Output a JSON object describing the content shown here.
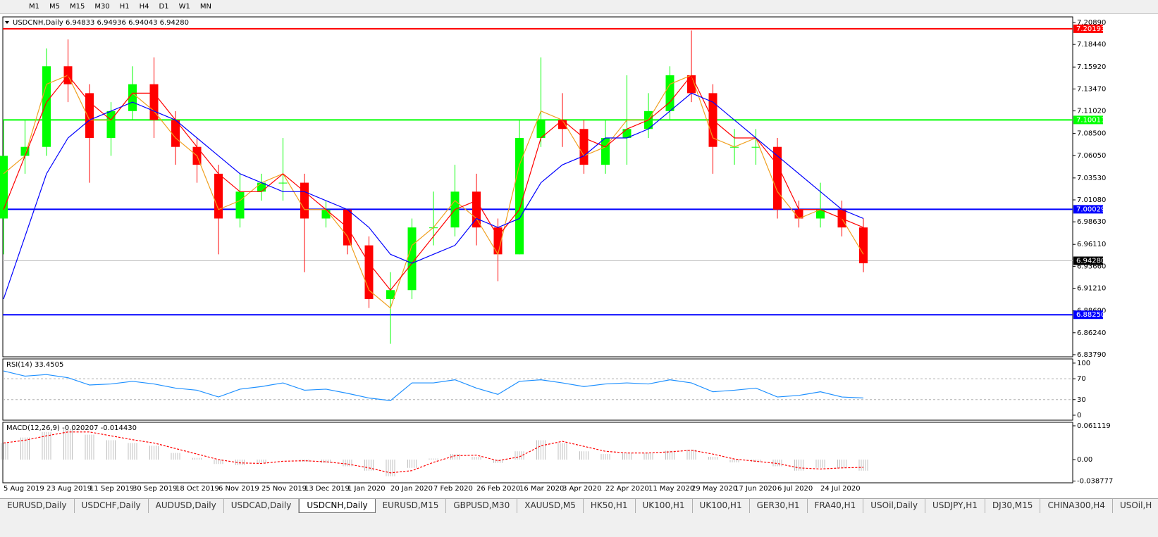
{
  "toolbar": {
    "buttons": [
      "M1",
      "M5",
      "M15",
      "M30",
      "H1",
      "H4",
      "D1",
      "W1",
      "MN"
    ]
  },
  "chart_data": [
    {
      "type": "candlestick",
      "title": "USDCNH,Daily  6.94833 6.94936 6.94043 6.94280",
      "categories": [
        "5 Aug 2019",
        null,
        "23 Aug 2019",
        null,
        "11 Sep 2019",
        null,
        "30 Sep 2019",
        null,
        "18 Oct 2019",
        null,
        "6 Nov 2019",
        null,
        "25 Nov 2019",
        null,
        "13 Dec 2019",
        null,
        "1 Jan 2020",
        null,
        "20 Jan 2020",
        null,
        "7 Feb 2020",
        null,
        "26 Feb 2020",
        null,
        "16 Mar 2020",
        null,
        "3 Apr 2020",
        null,
        "22 Apr 2020",
        null,
        "11 May 2020",
        null,
        "29 May 2020",
        null,
        "17 Jun 2020",
        null,
        "6 Jul 2020",
        null,
        "24 Jul 2020",
        null,
        null
      ],
      "open": [
        6.99,
        7.06,
        7.07,
        7.16,
        7.13,
        7.08,
        7.11,
        7.14,
        7.1,
        7.07,
        7.04,
        6.99,
        7.02,
        7.03,
        7.03,
        6.99,
        7.0,
        6.96,
        6.9,
        6.91,
        6.98,
        6.98,
        7.02,
        6.98,
        6.95,
        7.08,
        7.1,
        7.09,
        7.05,
        7.08,
        7.09,
        7.11,
        7.15,
        7.13,
        7.07,
        7.07,
        7.07,
        7.0,
        6.99,
        7.0,
        6.98
      ],
      "high": [
        7.1,
        7.1,
        7.18,
        7.19,
        7.14,
        7.12,
        7.16,
        7.17,
        7.11,
        7.08,
        7.05,
        7.04,
        7.04,
        7.08,
        7.04,
        7.01,
        7.0,
        6.97,
        6.93,
        6.99,
        7.02,
        7.05,
        7.04,
        6.99,
        7.1,
        7.17,
        7.13,
        7.1,
        7.1,
        7.15,
        7.13,
        7.16,
        7.2,
        7.14,
        7.09,
        7.09,
        7.08,
        7.01,
        7.03,
        7.01,
        6.99
      ],
      "low": [
        6.95,
        7.04,
        7.06,
        7.12,
        7.03,
        7.06,
        7.1,
        7.08,
        7.05,
        7.03,
        6.95,
        6.98,
        7.01,
        7.01,
        6.93,
        6.98,
        6.95,
        6.89,
        6.85,
        6.9,
        6.96,
        6.97,
        6.96,
        6.92,
        6.95,
        7.07,
        7.07,
        7.04,
        7.04,
        7.05,
        7.08,
        7.1,
        7.12,
        7.04,
        7.05,
        7.05,
        6.99,
        6.98,
        6.98,
        6.97,
        6.93
      ],
      "close": [
        7.06,
        7.07,
        7.16,
        7.14,
        7.08,
        7.11,
        7.14,
        7.1,
        7.07,
        7.05,
        6.99,
        7.02,
        7.03,
        7.03,
        6.99,
        7.0,
        6.96,
        6.9,
        6.91,
        6.98,
        6.98,
        7.02,
        6.98,
        6.95,
        7.08,
        7.1,
        7.09,
        7.05,
        7.08,
        7.09,
        7.11,
        7.15,
        7.13,
        7.07,
        7.07,
        7.07,
        7.0,
        6.99,
        7.0,
        6.98,
        6.94
      ],
      "up_color": "#00ff00",
      "down_color": "#ff0000",
      "overlays": [
        {
          "color": "#f0a020",
          "values": [
            7.04,
            7.06,
            7.14,
            7.15,
            7.1,
            7.1,
            7.13,
            7.11,
            7.08,
            7.06,
            7.0,
            7.01,
            7.03,
            7.04,
            7.0,
            7.0,
            6.97,
            6.91,
            6.89,
            6.96,
            6.98,
            7.01,
            6.99,
            6.95,
            7.05,
            7.11,
            7.1,
            7.06,
            7.07,
            7.1,
            7.1,
            7.14,
            7.15,
            7.08,
            7.07,
            7.08,
            7.02,
            6.99,
            7.0,
            6.99,
            6.95
          ]
        },
        {
          "color": "#ff0000",
          "values": [
            7.0,
            7.06,
            7.12,
            7.15,
            7.12,
            7.1,
            7.13,
            7.13,
            7.1,
            7.07,
            7.04,
            7.02,
            7.02,
            7.04,
            7.02,
            7.0,
            6.98,
            6.94,
            6.91,
            6.94,
            6.97,
            7.0,
            7.01,
            6.97,
            7.0,
            7.08,
            7.1,
            7.08,
            7.07,
            7.09,
            7.1,
            7.12,
            7.15,
            7.1,
            7.08,
            7.08,
            7.05,
            7.0,
            7.0,
            6.99,
            6.98
          ]
        },
        {
          "color": "#0000ff",
          "values": [
            6.9,
            6.97,
            7.04,
            7.08,
            7.1,
            7.11,
            7.12,
            7.11,
            7.1,
            7.08,
            7.06,
            7.04,
            7.03,
            7.02,
            7.02,
            7.01,
            7.0,
            6.98,
            6.95,
            6.94,
            6.95,
            6.96,
            6.99,
            6.98,
            6.99,
            7.03,
            7.05,
            7.06,
            7.08,
            7.08,
            7.09,
            7.11,
            7.13,
            7.12,
            7.1,
            7.08,
            7.06,
            7.04,
            7.02,
            7.0,
            6.99
          ]
        }
      ],
      "levels": [
        {
          "value": 7.20193,
          "label": "7.20193",
          "color": "#ff0000",
          "label_color": "#ff0000"
        },
        {
          "value": 7.10011,
          "label": "7.10011",
          "color": "#00ff00",
          "label_color": "#00ff00"
        },
        {
          "value": 7.00029,
          "label": "7.00029",
          "color": "#0000ff",
          "label_color": "#0000ff"
        },
        {
          "value": 6.9428,
          "label": "6.94280",
          "color": "#c0c0c0",
          "label_color": "#000000"
        },
        {
          "value": 6.8825,
          "label": "6.88250",
          "color": "#0000ff",
          "label_color": "#0000ff"
        }
      ],
      "ylim": [
        6.8355,
        7.2152
      ],
      "yticks": [
        {
          "value": 7.2089,
          "label": "7.20890"
        },
        {
          "value": 7.1844,
          "label": "7.18440"
        },
        {
          "value": 7.1592,
          "label": "7.15920"
        },
        {
          "value": 7.1347,
          "label": "7.13470"
        },
        {
          "value": 7.1102,
          "label": "7.11020"
        },
        {
          "value": 7.085,
          "label": "7.08500"
        },
        {
          "value": 7.0605,
          "label": "7.06050"
        },
        {
          "value": 7.0353,
          "label": "7.03530"
        },
        {
          "value": 7.0108,
          "label": "7.01080"
        },
        {
          "value": 6.9863,
          "label": "6.98630"
        },
        {
          "value": 6.9611,
          "label": "6.96110"
        },
        {
          "value": 6.9366,
          "label": "6.93660"
        },
        {
          "value": 6.9121,
          "label": "6.91210"
        },
        {
          "value": 6.8869,
          "label": "6.88690"
        },
        {
          "value": 6.8624,
          "label": "6.86240"
        },
        {
          "value": 6.8379,
          "label": "6.83790"
        }
      ]
    },
    {
      "type": "line",
      "title": "RSI(14) 33.4505",
      "color": "#1e90ff",
      "values": [
        85,
        75,
        78,
        72,
        58,
        60,
        65,
        60,
        52,
        48,
        35,
        50,
        55,
        62,
        48,
        50,
        42,
        33,
        28,
        62,
        62,
        68,
        52,
        40,
        65,
        68,
        62,
        55,
        60,
        62,
        60,
        68,
        62,
        45,
        48,
        52,
        35,
        38,
        45,
        35,
        33
      ],
      "ylim": [
        -9.5,
        108
      ],
      "yticks": [
        100,
        70,
        30,
        0
      ],
      "levels": [
        70,
        30
      ]
    },
    {
      "type": "macd",
      "title": "MACD(12,26,9) -0.020207 -0.014430",
      "color": "#c0c0c0",
      "signal_color": "#ff0000",
      "values": [
        0.03,
        0.04,
        0.05,
        0.055,
        0.045,
        0.035,
        0.03,
        0.025,
        0.012,
        0.003,
        -0.008,
        -0.01,
        -0.006,
        0.0,
        -0.004,
        -0.006,
        -0.012,
        -0.02,
        -0.03,
        -0.015,
        0.002,
        0.01,
        0.005,
        -0.006,
        0.015,
        0.035,
        0.03,
        0.015,
        0.01,
        0.012,
        0.012,
        0.016,
        0.018,
        0.005,
        -0.005,
        -0.004,
        -0.012,
        -0.02,
        -0.015,
        -0.015,
        -0.02
      ],
      "signal": [
        0.03,
        0.035,
        0.043,
        0.05,
        0.05,
        0.043,
        0.036,
        0.03,
        0.02,
        0.01,
        0.0,
        -0.006,
        -0.007,
        -0.003,
        -0.002,
        -0.004,
        -0.008,
        -0.015,
        -0.024,
        -0.02,
        -0.005,
        0.007,
        0.008,
        -0.002,
        0.005,
        0.025,
        0.033,
        0.024,
        0.015,
        0.012,
        0.012,
        0.014,
        0.017,
        0.01,
        0.001,
        -0.003,
        -0.007,
        -0.015,
        -0.017,
        -0.015,
        -0.014
      ],
      "ylim": [
        -0.042,
        0.0675
      ],
      "yticks": [
        0.061119,
        {
          "value": 0,
          "label": "0.00"
        },
        -0.038777
      ]
    }
  ],
  "tabs": {
    "items": [
      "EURUSD,Daily",
      "USDCHF,Daily",
      "AUDUSD,Daily",
      "USDCAD,Daily",
      "USDCNH,Daily",
      "EURUSD,M15",
      "GBPUSD,M30",
      "XAUUSD,M5",
      "HK50,H1",
      "UK100,H1",
      "UK100,H1",
      "GER30,H1",
      "FRA40,H1",
      "USOil,Daily",
      "USDJPY,H1",
      "DJ30,M15",
      "CHINA300,H4",
      "USOil,H"
    ],
    "active": 4
  }
}
